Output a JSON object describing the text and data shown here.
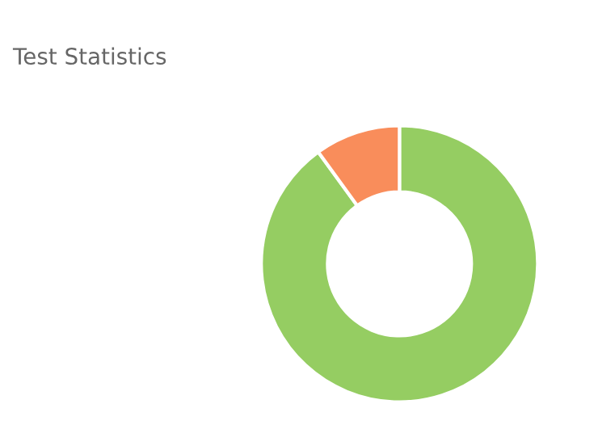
{
  "chart_data": {
    "type": "donut",
    "title": "Test Statistics",
    "categories": [
      null,
      null
    ],
    "values": [
      90,
      10
    ],
    "colors": [
      "#95cd62",
      "#f98d5b"
    ],
    "legend": false
  }
}
